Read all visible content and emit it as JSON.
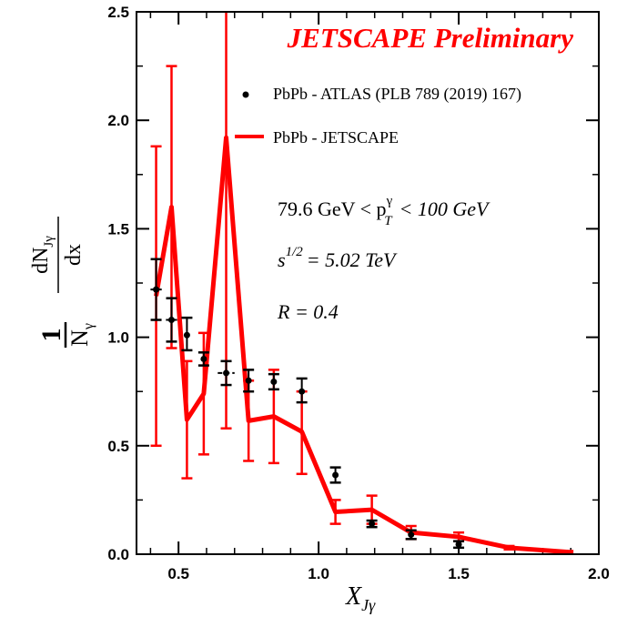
{
  "chart_data": {
    "type": "line",
    "title": "JETSCAPE Preliminary",
    "xlabel": "X_Jγ",
    "ylabel": "(1/N_γ) dN_Jγ/dx",
    "xlim": [
      0.35,
      2.0
    ],
    "ylim": [
      0.0,
      2.5
    ],
    "xticks": [
      0.5,
      1.0,
      1.5,
      2.0
    ],
    "xtick_labels": [
      "0.5",
      "1.0",
      "1.5",
      "2.0"
    ],
    "yticks": [
      0.0,
      0.5,
      1.0,
      1.5,
      2.0,
      2.5
    ],
    "ytick_labels": [
      "0.0",
      "0.5",
      "1.0",
      "1.5",
      "2.0",
      "2.5"
    ],
    "legend": {
      "position": "top-right",
      "entries": [
        {
          "label": "PbPb - ATLAS (PLB 789 (2019) 167)",
          "marker": "dot",
          "color": "#000000"
        },
        {
          "label": "PbPb - JETSCAPE",
          "marker": "line",
          "color": "#ff0000"
        }
      ]
    },
    "series": [
      {
        "name": "PbPb - ATLAS (PLB 789 (2019) 167)",
        "color": "#000000",
        "style": "points",
        "x": [
          0.42,
          0.475,
          0.53,
          0.59,
          0.67,
          0.75,
          0.84,
          0.94,
          1.06,
          1.19,
          1.33,
          1.5
        ],
        "y": [
          1.22,
          1.08,
          1.01,
          0.9,
          0.835,
          0.8,
          0.795,
          0.75,
          0.365,
          0.14,
          0.09,
          0.045
        ],
        "xerr": [
          0.02,
          0.02,
          0.0,
          0.0,
          0.03,
          0.0,
          0.0,
          0.0,
          0.0,
          0.0,
          0.0,
          0.0
        ],
        "ylo": [
          1.08,
          0.98,
          0.94,
          0.87,
          0.78,
          0.75,
          0.76,
          0.7,
          0.33,
          0.125,
          0.07,
          0.03
        ],
        "yhi": [
          1.36,
          1.18,
          1.09,
          0.93,
          0.89,
          0.85,
          0.83,
          0.81,
          0.4,
          0.155,
          0.11,
          0.06
        ]
      },
      {
        "name": "PbPb - JETSCAPE",
        "color": "#ff0000",
        "style": "line",
        "x": [
          0.42,
          0.475,
          0.53,
          0.59,
          0.67,
          0.75,
          0.84,
          0.94,
          1.06,
          1.19,
          1.33,
          1.5,
          1.68,
          1.89
        ],
        "y": [
          1.19,
          1.6,
          0.62,
          0.74,
          1.92,
          0.615,
          0.635,
          0.565,
          0.195,
          0.205,
          0.1,
          0.08,
          0.03,
          0.01
        ],
        "ylo": [
          0.5,
          0.95,
          0.35,
          0.46,
          0.58,
          0.43,
          0.42,
          0.37,
          0.14,
          0.14,
          0.07,
          0.06,
          0.022,
          0.005
        ],
        "yhi": [
          1.88,
          2.25,
          0.89,
          1.02,
          2.5,
          0.8,
          0.85,
          0.75,
          0.25,
          0.27,
          0.13,
          0.1,
          0.038,
          0.015
        ]
      }
    ],
    "annotations": [
      {
        "text": "79.6 GeV < p",
        "sup": "γ",
        "sub": "T",
        "suffix": "< 100 GeV"
      },
      {
        "text": "s",
        "sup": "1/2",
        "suffix": "= 5.02 TeV"
      },
      {
        "text": "R = 0.4"
      }
    ]
  }
}
